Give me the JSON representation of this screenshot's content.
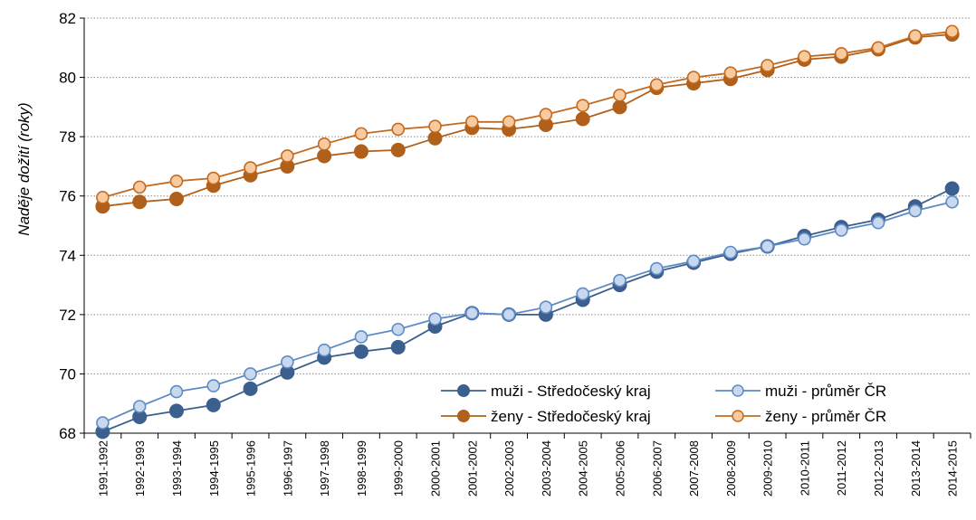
{
  "chart_data": {
    "type": "line",
    "title": "",
    "ylabel": "Naděje dožití (roky)",
    "xlabel": "",
    "ylim": [
      68,
      82
    ],
    "yticks": [
      68,
      70,
      72,
      74,
      76,
      78,
      80,
      82
    ],
    "grid": "horizontal dotted",
    "legend_position": "bottom-right",
    "categories": [
      "1991-1992",
      "1992-1993",
      "1993-1994",
      "1994-1995",
      "1995-1996",
      "1996-1997",
      "1997-1998",
      "1998-1999",
      "1999-2000",
      "2000-2001",
      "2001-2002",
      "2002-2003",
      "2003-2004",
      "2004-2005",
      "2005-2006",
      "2006-2007",
      "2007-2008",
      "2008-2009",
      "2009-2010",
      "2010-2011",
      "2011-2012",
      "2012-2013",
      "2013-2014",
      "2014-2015"
    ],
    "series": [
      {
        "name": "muži - Středočeský kraj",
        "color": "#3b5f8f",
        "marker": "filled",
        "values": [
          68.05,
          68.55,
          68.75,
          68.95,
          69.5,
          70.05,
          70.55,
          70.75,
          70.9,
          71.6,
          72.05,
          72.0,
          72.0,
          72.5,
          73.0,
          73.45,
          73.75,
          74.05,
          74.3,
          74.65,
          74.95,
          75.2,
          75.65,
          76.25
        ]
      },
      {
        "name": "muži - průměr ČR",
        "color": "#5f8bc5",
        "marker": "open",
        "fill": "#c8d8ee",
        "values": [
          68.35,
          68.9,
          69.4,
          69.6,
          70.0,
          70.4,
          70.8,
          71.25,
          71.5,
          71.85,
          72.05,
          72.0,
          72.25,
          72.7,
          73.15,
          73.55,
          73.8,
          74.1,
          74.3,
          74.55,
          74.85,
          75.1,
          75.5,
          75.8
        ]
      },
      {
        "name": "ženy - Středočeský kraj",
        "color": "#b0601a",
        "marker": "filled",
        "values": [
          75.65,
          75.8,
          75.9,
          76.35,
          76.7,
          77.0,
          77.35,
          77.5,
          77.55,
          77.95,
          78.3,
          78.25,
          78.4,
          78.6,
          79.0,
          79.65,
          79.8,
          79.95,
          80.25,
          80.6,
          80.7,
          80.95,
          81.35,
          81.45
        ]
      },
      {
        "name": "ženy - průměr ČR",
        "color": "#c46a1f",
        "marker": "open",
        "fill": "#f8caa0",
        "values": [
          75.95,
          76.3,
          76.5,
          76.6,
          76.95,
          77.35,
          77.75,
          78.1,
          78.25,
          78.35,
          78.5,
          78.5,
          78.75,
          79.05,
          79.4,
          79.75,
          80.0,
          80.15,
          80.4,
          80.7,
          80.8,
          81.0,
          81.4,
          81.55
        ]
      }
    ]
  }
}
